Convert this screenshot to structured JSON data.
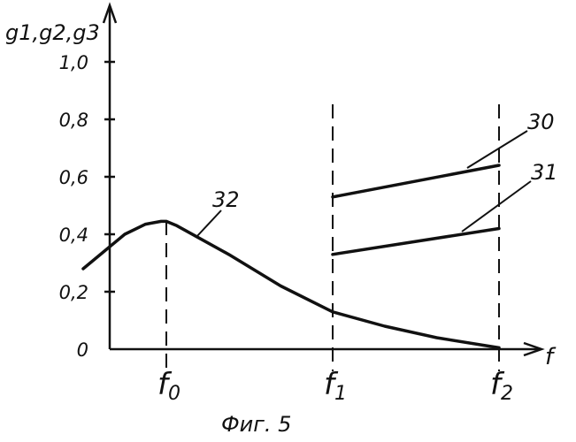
{
  "chart_data": {
    "type": "line",
    "ylabel": "g1,g2,g3",
    "xlabel": "f",
    "y_ticks": [
      "0",
      "0,2",
      "0,4",
      "0,6",
      "0,8",
      "1,0"
    ],
    "y_tick_values": [
      0,
      0.2,
      0.4,
      0.6,
      0.8,
      1.0
    ],
    "ylim": [
      0,
      1.0
    ],
    "x_ticks": [
      "f0",
      "f1",
      "f2"
    ],
    "xlim": [
      0,
      1
    ],
    "x_tick_values": [
      0.18,
      0.5,
      0.82
    ],
    "grid": false,
    "series": [
      {
        "name": "32",
        "x": [
          0.02,
          0.06,
          0.1,
          0.14,
          0.17,
          0.18,
          0.2,
          0.24,
          0.3,
          0.4,
          0.5,
          0.6,
          0.7,
          0.82
        ],
        "values": [
          0.28,
          0.34,
          0.4,
          0.435,
          0.445,
          0.445,
          0.43,
          0.39,
          0.33,
          0.22,
          0.13,
          0.08,
          0.04,
          0.005
        ]
      },
      {
        "name": "30",
        "x": [
          0.5,
          0.82
        ],
        "values": [
          0.53,
          0.64
        ]
      },
      {
        "name": "31",
        "x": [
          0.5,
          0.82
        ],
        "values": [
          0.33,
          0.42
        ]
      }
    ],
    "caption": "Фиг. 5"
  }
}
